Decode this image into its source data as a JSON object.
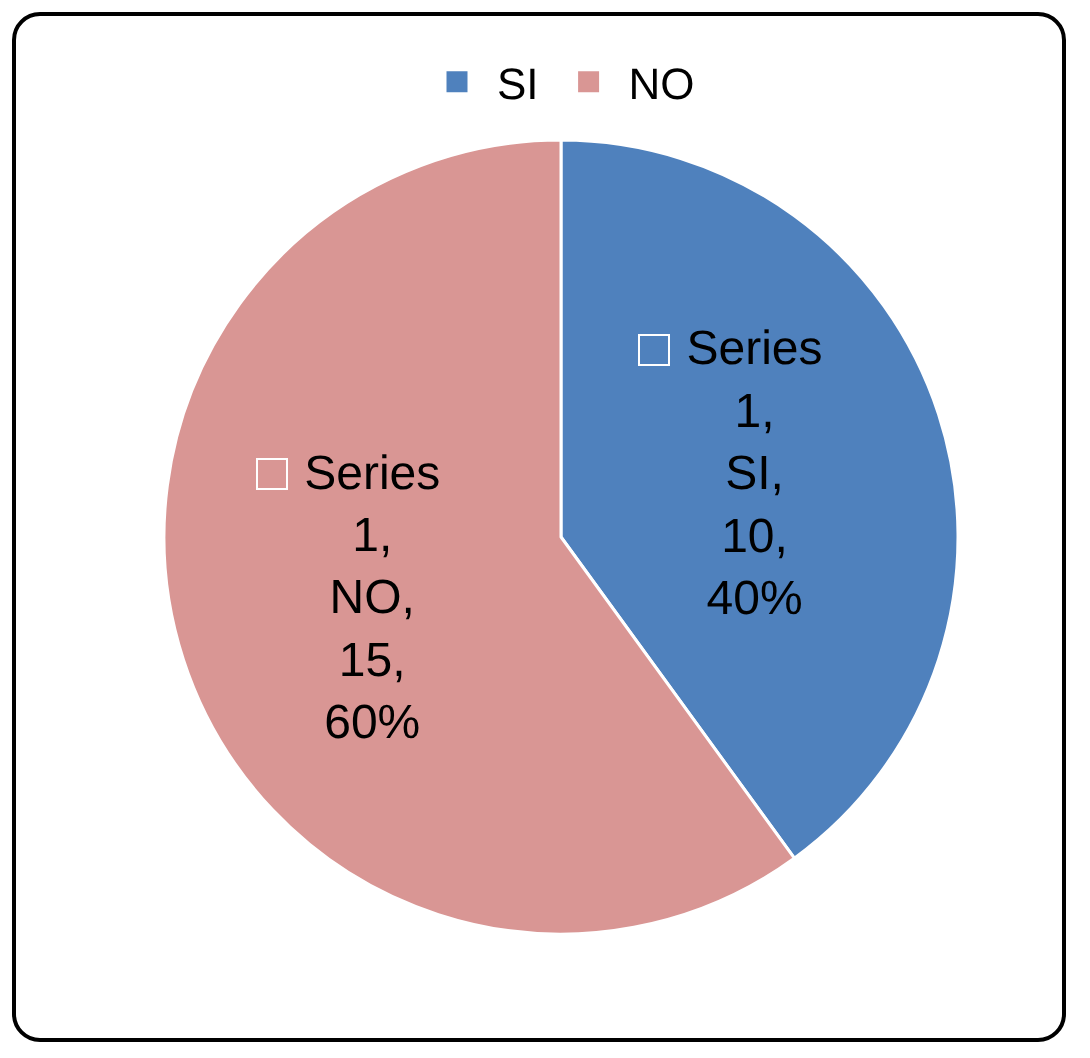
{
  "chart_data": {
    "type": "pie",
    "categories": [
      "SI",
      "NO"
    ],
    "values": [
      10,
      15
    ],
    "colors": [
      "#4f81bd",
      "#d99694"
    ],
    "value_labels": [
      "Series 1, SI, 10, 40%",
      "Series 1, NO, 15, 60%"
    ],
    "legend": "top"
  }
}
